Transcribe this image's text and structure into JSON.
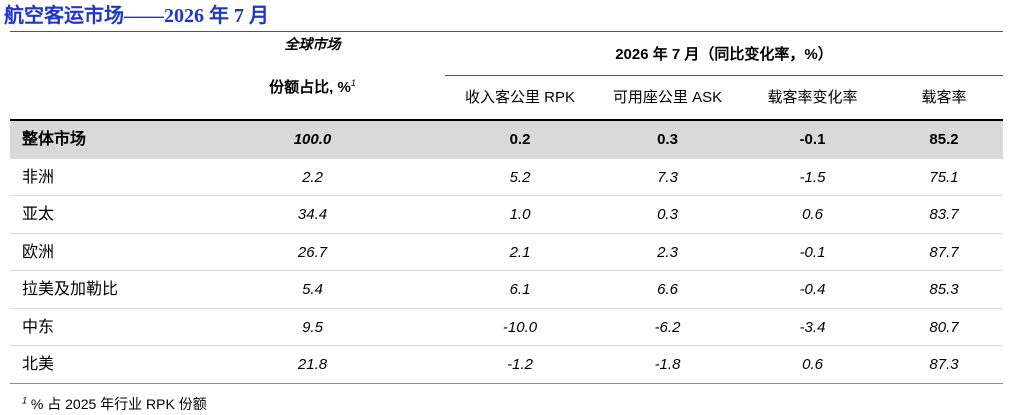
{
  "title": "航空客运市场——2026 年 7 月",
  "header": {
    "share_group": "全球市场",
    "share_label": "份额占比, %",
    "share_note_mark": "1",
    "change_group": "2026 年 7 月（同比变化率，%）",
    "columns": {
      "rpk": "收入客公里 RPK",
      "ask": "可用座公里 ASK",
      "plf_change": "载客率变化率",
      "plf": "载客率"
    }
  },
  "rows": [
    {
      "region": "整体市场",
      "share": "100.0",
      "rpk": "0.2",
      "ask": "0.3",
      "plf_change": "-0.1",
      "plf": "85.2"
    },
    {
      "region": "非洲",
      "share": "2.2",
      "rpk": "5.2",
      "ask": "7.3",
      "plf_change": "-1.5",
      "plf": "75.1"
    },
    {
      "region": "亚太",
      "share": "34.4",
      "rpk": "1.0",
      "ask": "0.3",
      "plf_change": "0.6",
      "plf": "83.7"
    },
    {
      "region": "欧洲",
      "share": "26.7",
      "rpk": "2.1",
      "ask": "2.3",
      "plf_change": "-0.1",
      "plf": "87.7"
    },
    {
      "region": "拉美及加勒比",
      "share": "5.4",
      "rpk": "6.1",
      "ask": "6.6",
      "plf_change": "-0.4",
      "plf": "85.3"
    },
    {
      "region": "中东",
      "share": "9.5",
      "rpk": "-10.0",
      "ask": "-6.2",
      "plf_change": "-3.4",
      "plf": "80.7"
    },
    {
      "region": "北美",
      "share": "21.8",
      "rpk": "-1.2",
      "ask": "-1.8",
      "plf_change": "0.6",
      "plf": "87.3"
    }
  ],
  "footnote": {
    "mark": "1",
    "text": "% 占 2025 年行业 RPK 份额"
  },
  "colors": {
    "title": "#1f35d0",
    "highlight_row_bg": "#d9d9d9",
    "text": "#000000"
  }
}
